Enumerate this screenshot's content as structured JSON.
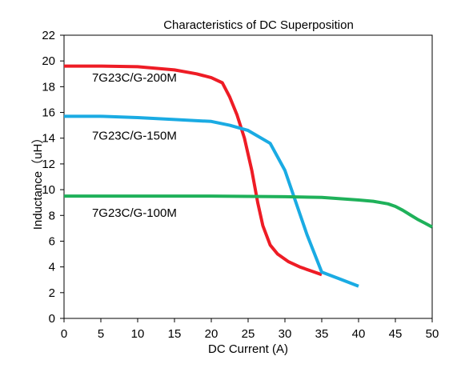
{
  "chart_data": {
    "type": "line",
    "title": "Characteristics of DC Superposition",
    "xlabel": "DC Current (A)",
    "ylabel": "Inductance（uH）",
    "xlim": [
      0,
      50
    ],
    "ylim": [
      0,
      22
    ],
    "xticks": [
      0,
      5,
      10,
      15,
      20,
      25,
      30,
      35,
      40,
      45,
      50
    ],
    "yticks": [
      0,
      2,
      4,
      6,
      8,
      10,
      12,
      14,
      16,
      18,
      20,
      22
    ],
    "grid": false,
    "series": [
      {
        "name": "7G23C/G-200M",
        "color": "#ee1c25",
        "label_at": [
          3.8,
          18.4
        ],
        "points": [
          [
            0,
            19.6
          ],
          [
            5,
            19.6
          ],
          [
            10,
            19.55
          ],
          [
            15,
            19.3
          ],
          [
            18,
            19.0
          ],
          [
            20,
            18.7
          ],
          [
            21.5,
            18.3
          ],
          [
            22.5,
            17.2
          ],
          [
            23.5,
            15.8
          ],
          [
            24.5,
            14.0
          ],
          [
            25.5,
            11.5
          ],
          [
            26.3,
            9.0
          ],
          [
            27.0,
            7.2
          ],
          [
            28.0,
            5.7
          ],
          [
            29.0,
            5.0
          ],
          [
            30.5,
            4.4
          ],
          [
            32.0,
            4.0
          ],
          [
            33.5,
            3.7
          ],
          [
            35.0,
            3.4
          ]
        ]
      },
      {
        "name": "7G23C/G-150M",
        "color": "#1aabe3",
        "label_at": [
          3.8,
          13.9
        ],
        "points": [
          [
            0,
            15.7
          ],
          [
            5,
            15.7
          ],
          [
            10,
            15.6
          ],
          [
            15,
            15.45
          ],
          [
            20,
            15.3
          ],
          [
            22.5,
            15.0
          ],
          [
            25,
            14.6
          ],
          [
            28,
            13.6
          ],
          [
            30,
            11.5
          ],
          [
            31.5,
            9.0
          ],
          [
            33.0,
            6.5
          ],
          [
            35.0,
            3.6
          ],
          [
            37.5,
            3.05
          ],
          [
            40,
            2.5
          ]
        ]
      },
      {
        "name": "7G23C/G-100M",
        "color": "#1fb15a",
        "label_at": [
          3.8,
          7.9
        ],
        "points": [
          [
            0,
            9.5
          ],
          [
            10,
            9.5
          ],
          [
            20,
            9.5
          ],
          [
            30,
            9.45
          ],
          [
            35,
            9.4
          ],
          [
            40,
            9.2
          ],
          [
            42,
            9.1
          ],
          [
            44,
            8.9
          ],
          [
            45,
            8.7
          ],
          [
            46,
            8.4
          ],
          [
            47,
            8.05
          ],
          [
            48,
            7.7
          ],
          [
            49,
            7.4
          ],
          [
            50,
            7.1
          ]
        ]
      }
    ]
  }
}
